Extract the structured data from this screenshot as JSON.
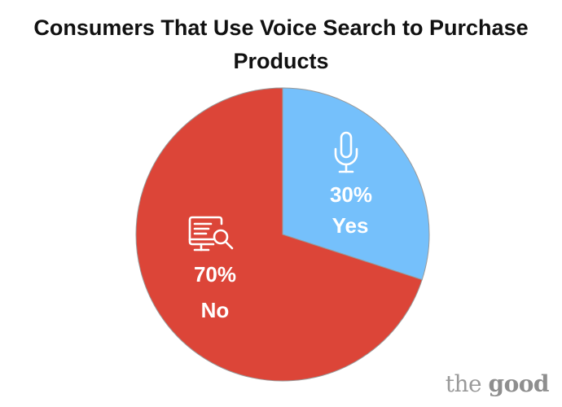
{
  "chart_data": {
    "type": "pie",
    "title_lines": [
      "Consumers That Use Voice Search to Purchase",
      "Products"
    ],
    "slices": [
      {
        "label": "Yes",
        "percent_label": "30%",
        "value": 30,
        "color": "#75c0fb",
        "icon": "microphone-icon"
      },
      {
        "label": "No",
        "percent_label": "70%",
        "value": 70,
        "color": "#dc4538",
        "icon": "monitor-search-icon"
      }
    ],
    "start_angle_deg": 0,
    "direction": "clockwise",
    "stroke_color": "#9a9a9a"
  },
  "brand": {
    "word1": "the",
    "word2": "good"
  }
}
